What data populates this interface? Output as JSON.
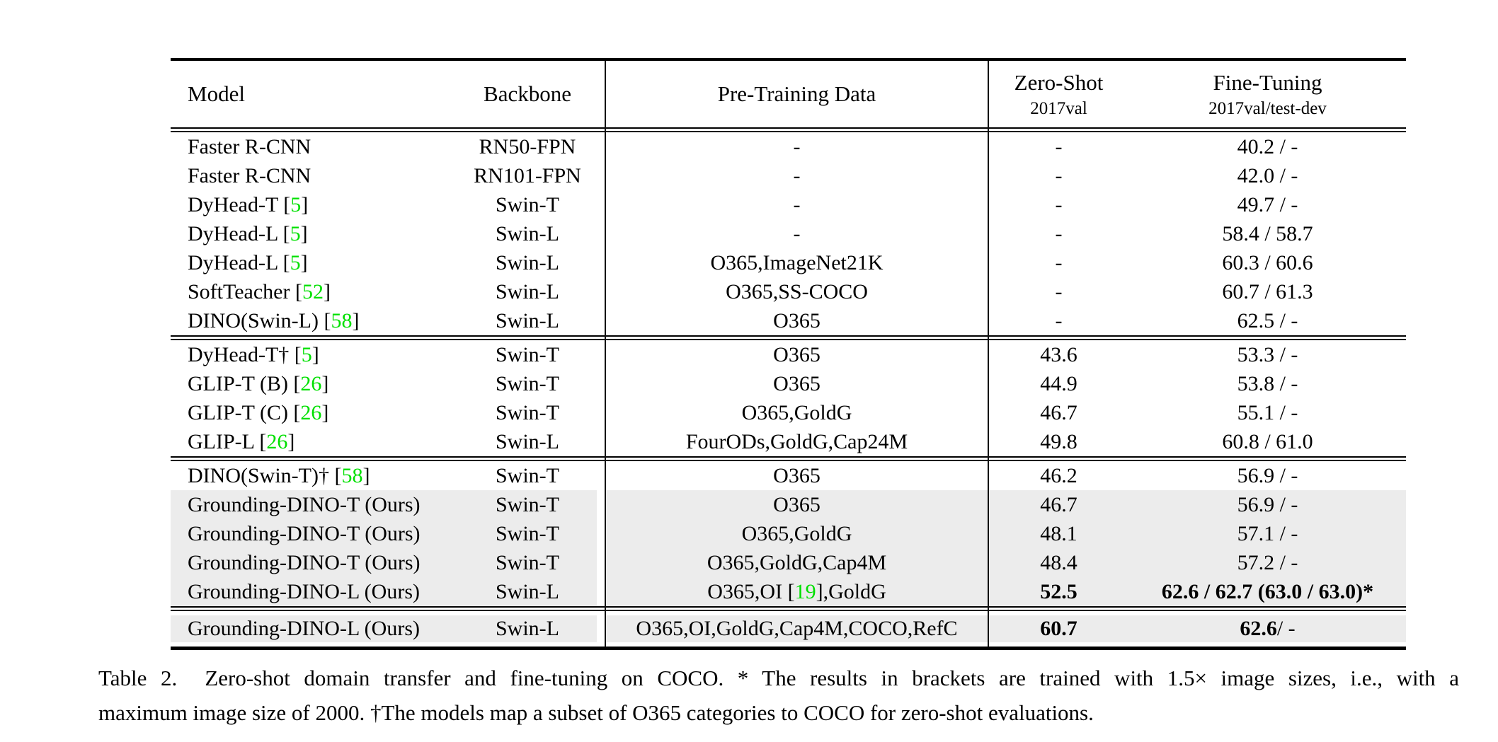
{
  "colors": {
    "highlight_row": "#ececec",
    "citation_green": "#00e000",
    "rule_black": "#000000"
  },
  "table": {
    "header": {
      "model": "Model",
      "backbone": "Backbone",
      "pretraining": "Pre-Training Data",
      "zero_shot_title": "Zero-Shot",
      "zero_shot_sub": "2017val",
      "fine_tuning_title": "Fine-Tuning",
      "fine_tuning_sub": "2017val/test-dev"
    },
    "groups": [
      {
        "rows": [
          {
            "model": "Faster R-CNN",
            "backbone": "RN50-FPN",
            "pretrain": "-",
            "zero_shot": "-",
            "fine_tuning": "40.2 / -",
            "highlight": false
          },
          {
            "model": "Faster R-CNN",
            "backbone": "RN101-FPN",
            "pretrain": "-",
            "zero_shot": "-",
            "fine_tuning": "42.0 / -",
            "highlight": false
          },
          {
            "model": "DyHead-T [⟦5⟧]",
            "backbone": "Swin-T",
            "pretrain": "-",
            "zero_shot": "-",
            "fine_tuning": "49.7 / -",
            "highlight": false
          },
          {
            "model": "DyHead-L [⟦5⟧]",
            "backbone": "Swin-L",
            "pretrain": "-",
            "zero_shot": "-",
            "fine_tuning": "58.4 / 58.7",
            "highlight": false
          },
          {
            "model": "DyHead-L [⟦5⟧]",
            "backbone": "Swin-L",
            "pretrain": "O365,ImageNet21K",
            "zero_shot": "-",
            "fine_tuning": "60.3 / 60.6",
            "highlight": false
          },
          {
            "model": "SoftTeacher [⟦52⟧]",
            "backbone": "Swin-L",
            "pretrain": "O365,SS-COCO",
            "zero_shot": "-",
            "fine_tuning": "60.7 / 61.3",
            "highlight": false
          },
          {
            "model": "DINO(Swin-L) [⟦58⟧]",
            "backbone": "Swin-L",
            "pretrain": "O365",
            "zero_shot": "-",
            "fine_tuning": "62.5 / -",
            "highlight": false
          }
        ]
      },
      {
        "rows": [
          {
            "model": "DyHead-T† [⟦5⟧]",
            "backbone": "Swin-T",
            "pretrain": "O365",
            "zero_shot": "43.6",
            "fine_tuning": "53.3 / -",
            "highlight": false
          },
          {
            "model": "GLIP-T (B) [⟦26⟧]",
            "backbone": "Swin-T",
            "pretrain": "O365",
            "zero_shot": "44.9",
            "fine_tuning": "53.8 / -",
            "highlight": false
          },
          {
            "model": "GLIP-T (C) [⟦26⟧]",
            "backbone": "Swin-T",
            "pretrain": "O365,GoldG",
            "zero_shot": "46.7",
            "fine_tuning": "55.1 / -",
            "highlight": false
          },
          {
            "model": "GLIP-L [⟦26⟧]",
            "backbone": "Swin-L",
            "pretrain": "FourODs,GoldG,Cap24M",
            "zero_shot": "49.8",
            "fine_tuning": "60.8 / 61.0",
            "highlight": false
          }
        ]
      },
      {
        "rows": [
          {
            "model": "DINO(Swin-T)† [⟦58⟧]",
            "backbone": "Swin-T",
            "pretrain": "O365",
            "zero_shot": "46.2",
            "fine_tuning": "56.9 / -",
            "highlight": false
          },
          {
            "model": "Grounding-DINO-T (Ours)",
            "backbone": "Swin-T",
            "pretrain": "O365",
            "zero_shot": "46.7",
            "fine_tuning": "56.9 / -",
            "highlight": true
          },
          {
            "model": "Grounding-DINO-T (Ours)",
            "backbone": "Swin-T",
            "pretrain": "O365,GoldG",
            "zero_shot": "48.1",
            "fine_tuning": "57.1 / -",
            "highlight": true
          },
          {
            "model": "Grounding-DINO-T (Ours)",
            "backbone": "Swin-T",
            "pretrain": "O365,GoldG,Cap4M",
            "zero_shot": "48.4",
            "fine_tuning": "57.2 / -",
            "highlight": true
          },
          {
            "model": "Grounding-DINO-L (Ours)",
            "backbone": "Swin-L",
            "pretrain": "O365,OI [⟦19⟧],GoldG",
            "zero_shot": "⟪52.5⟫",
            "fine_tuning": "⟪62.6 / 62.7 (63.0 / 63.0)*⟫",
            "highlight": true
          }
        ]
      },
      {
        "rows": [
          {
            "model": "Grounding-DINO-L (Ours)",
            "backbone": "Swin-L",
            "pretrain": "O365,OI,GoldG,Cap4M,COCO,RefC",
            "zero_shot": "⟪60.7⟫",
            "fine_tuning": "⟪62.6⟫ / -",
            "highlight": true
          }
        ]
      }
    ]
  },
  "caption": {
    "line1": "Table 2.  Zero-shot domain transfer and fine-tuning on COCO. * The results in brackets are trained with 1.5× image sizes, i.e., with a",
    "line2": "maximum image size of 2000. †The models map a subset of O365 categories to COCO for zero-shot evaluations."
  }
}
